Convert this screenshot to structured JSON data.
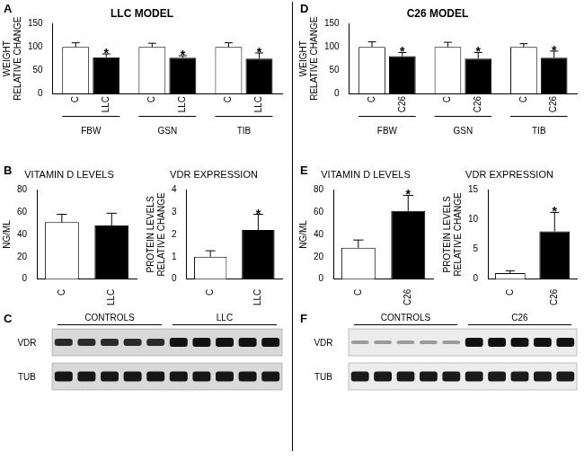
{
  "chart_data": [
    {
      "panel": "A",
      "type": "bar",
      "title": "LLC MODEL",
      "y_label": [
        "WEIGHT",
        "RELATIVE CHANGE"
      ],
      "categories": [
        "FBW",
        "GSN",
        "TIB"
      ],
      "series": [
        {
          "name": "C",
          "color": "#ffffff",
          "values": [
            100,
            100,
            100
          ],
          "errors": [
            9,
            8,
            9
          ]
        },
        {
          "name": "LLC",
          "color": "#000000",
          "values": [
            78,
            77,
            75
          ],
          "errors": [
            7,
            4,
            12
          ],
          "significance": [
            "*",
            "*",
            "*"
          ]
        }
      ],
      "ylim": [
        0,
        150
      ],
      "yticks": [
        0,
        50,
        100,
        150
      ],
      "grid": false
    },
    {
      "panel": "B",
      "type": "bar",
      "title": "VITAMIN D LEVELS",
      "y_label": "NG/ML",
      "categories": [
        "C",
        "LLC"
      ],
      "values": [
        51,
        48
      ],
      "errors": [
        7,
        11
      ],
      "colors": [
        "#ffffff",
        "#000000"
      ],
      "ylim": [
        0,
        80
      ],
      "yticks": [
        0,
        20,
        40,
        60,
        80
      ],
      "grid": false
    },
    {
      "type": "bar",
      "title": "VDR EXPRESSION",
      "y_label": [
        "PROTEIN LEVELS",
        "RELATIVE CHANGE"
      ],
      "categories": [
        "C",
        "LLC"
      ],
      "values": [
        1.0,
        2.2
      ],
      "errors": [
        0.27,
        0.7
      ],
      "significance": [
        null,
        "*"
      ],
      "colors": [
        "#ffffff",
        "#000000"
      ],
      "ylim": [
        0,
        4
      ],
      "yticks": [
        0,
        1,
        2,
        3,
        4
      ],
      "grid": false
    },
    {
      "panel": "D",
      "type": "bar",
      "title": "C26 MODEL",
      "y_label": [
        "WEIGHT",
        "RELATIVE CHANGE"
      ],
      "categories": [
        "FBW",
        "GSN",
        "TIB"
      ],
      "series": [
        {
          "name": "C",
          "color": "#ffffff",
          "values": [
            100,
            100,
            100
          ],
          "errors": [
            11,
            10,
            7
          ]
        },
        {
          "name": "C26",
          "color": "#000000",
          "values": [
            80,
            75,
            77
          ],
          "errors": [
            8,
            13,
            14
          ],
          "significance": [
            "*",
            "*",
            "*"
          ]
        }
      ],
      "ylim": [
        0,
        150
      ],
      "yticks": [
        0,
        50,
        100,
        150
      ],
      "grid": false
    },
    {
      "panel": "E",
      "type": "bar",
      "title": "VITAMIN D LEVELS",
      "y_label": "NG/ML",
      "categories": [
        "C",
        "C26"
      ],
      "values": [
        28,
        61
      ],
      "errors": [
        7,
        14
      ],
      "significance": [
        null,
        "*"
      ],
      "colors": [
        "#ffffff",
        "#000000"
      ],
      "ylim": [
        0,
        80
      ],
      "yticks": [
        0,
        20,
        40,
        60,
        80
      ],
      "grid": false
    },
    {
      "type": "bar",
      "title": "VDR EXPRESSION",
      "y_label": [
        "PROTEIN LEVELS",
        "RELATIVE CHANGE"
      ],
      "categories": [
        "C",
        "C26"
      ],
      "values": [
        1.0,
        8.0
      ],
      "errors": [
        0.4,
        3.2
      ],
      "significance": [
        null,
        "*"
      ],
      "colors": [
        "#ffffff",
        "#000000"
      ],
      "ylim": [
        0,
        15
      ],
      "yticks": [
        0,
        5,
        10,
        15
      ],
      "grid": false
    }
  ],
  "blots": [
    {
      "panel": "C",
      "groups": [
        "CONTROLS",
        "LLC"
      ],
      "rows": [
        "VDR",
        "TUB"
      ]
    },
    {
      "panel": "F",
      "groups": [
        "CONTROLS",
        "C26"
      ],
      "rows": [
        "VDR",
        "TUB"
      ]
    }
  ]
}
